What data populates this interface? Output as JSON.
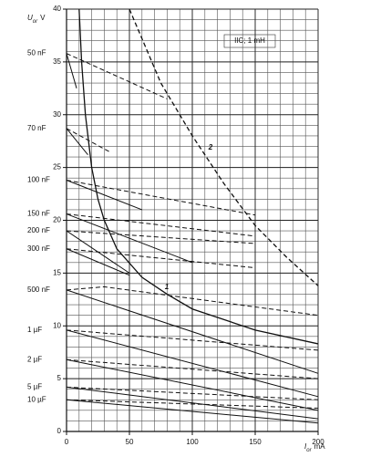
{
  "chart_data": {
    "type": "line",
    "ylabel": {
      "symbol": "U",
      "subscript": "or",
      "unit": "V"
    },
    "xlabel": {
      "symbol": "I",
      "subscript": "or",
      "unit": "mA"
    },
    "annotation": "IIC; 1 mH",
    "xlim": [
      0,
      200
    ],
    "xticks": [
      0,
      50,
      100,
      150,
      200
    ],
    "ylim": [
      0,
      40
    ],
    "yticks": [
      0,
      5,
      10,
      15,
      20,
      25,
      30,
      35,
      40
    ],
    "grid": true,
    "minor_grid": {
      "x": 10,
      "y": 1
    },
    "color": "#111111",
    "curves": [
      {
        "label": "1",
        "style": "solid",
        "x": [
          10,
          12,
          15,
          20,
          25,
          30,
          40,
          60,
          80,
          100,
          150,
          200
        ],
        "y": [
          40,
          35,
          30,
          25,
          22,
          20,
          17.3,
          14.6,
          13,
          11.6,
          9.6,
          8.3
        ]
      },
      {
        "label": "2",
        "style": "dashed",
        "x": [
          50,
          75,
          100,
          125,
          150,
          175,
          200
        ],
        "y": [
          40,
          33,
          28,
          23.5,
          19.5,
          16.5,
          13.8
        ]
      }
    ],
    "capacitors": [
      {
        "label": "50 nF",
        "solid": {
          "x": [
            0,
            8
          ],
          "y": [
            35.8,
            32.5
          ]
        },
        "dashed": {
          "x": [
            0,
            80
          ],
          "y": [
            35.8,
            31.5
          ]
        }
      },
      {
        "label": "70 nF",
        "solid": {
          "x": [
            0,
            17
          ],
          "y": [
            28.7,
            26.2
          ]
        },
        "dashed": {
          "x": [
            0,
            34
          ],
          "y": [
            28.7,
            26.5
          ]
        }
      },
      {
        "label": "100 nF",
        "solid": {
          "x": [
            0,
            60
          ],
          "y": [
            23.8,
            21
          ]
        },
        "dashed": {
          "x": [
            0,
            150
          ],
          "y": [
            23.8,
            20.5
          ]
        }
      },
      {
        "label": "150 nF",
        "solid": {
          "x": [
            0,
            100
          ],
          "y": [
            20.6,
            16
          ]
        },
        "dashed": {
          "x": [
            0,
            150
          ],
          "y": [
            20.6,
            18.5
          ]
        }
      },
      {
        "label": "200 nF",
        "solid": {
          "x": [
            0,
            50
          ],
          "y": [
            19,
            15
          ]
        },
        "dashed": {
          "x": [
            0,
            150
          ],
          "y": [
            19,
            17.8
          ]
        }
      },
      {
        "label": "300 nF",
        "solid": {
          "x": [
            0,
            50
          ],
          "y": [
            17.3,
            14.8
          ]
        },
        "dashed": {
          "x": [
            0,
            150
          ],
          "y": [
            17.3,
            15.5
          ]
        }
      },
      {
        "label": "500 nF",
        "solid": {
          "x": [
            0,
            200
          ],
          "y": [
            13.4,
            5.5
          ]
        },
        "dashed": {
          "x": [
            0,
            30,
            200
          ],
          "y": [
            13.4,
            13.7,
            11
          ]
        }
      },
      {
        "label": "1 µF",
        "solid": {
          "x": [
            0,
            200
          ],
          "y": [
            9.6,
            3.3
          ]
        },
        "dashed": {
          "x": [
            0,
            200
          ],
          "y": [
            9.6,
            7.7
          ]
        }
      },
      {
        "label": "2 µF",
        "solid": {
          "x": [
            0,
            200
          ],
          "y": [
            6.8,
            2
          ]
        },
        "dashed": {
          "x": [
            0,
            200
          ],
          "y": [
            6.8,
            5
          ]
        }
      },
      {
        "label": "5 µF",
        "solid": {
          "x": [
            0,
            200
          ],
          "y": [
            4.2,
            1.2
          ]
        },
        "dashed": {
          "x": [
            0,
            200
          ],
          "y": [
            4.2,
            3
          ]
        }
      },
      {
        "label": "10 µF",
        "solid": {
          "x": [
            0,
            200
          ],
          "y": [
            3,
            0.8
          ]
        },
        "dashed": {
          "x": [
            0,
            200
          ],
          "y": [
            3,
            2.2
          ]
        }
      }
    ]
  }
}
